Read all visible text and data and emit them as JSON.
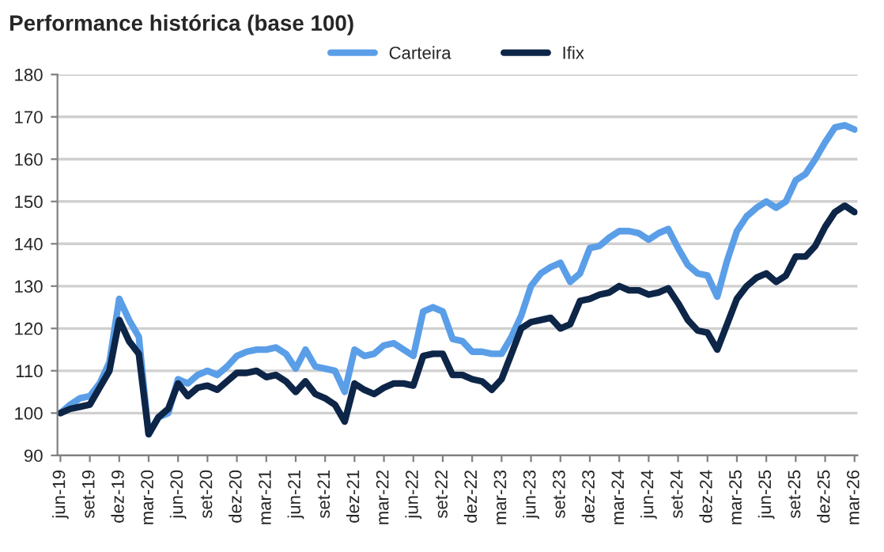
{
  "chart_data": {
    "type": "line",
    "title": "Performance histórica (base 100)",
    "categories": [
      "jun-19",
      null,
      null,
      "set-19",
      null,
      null,
      "dez-19",
      null,
      null,
      "mar-20",
      null,
      null,
      "jun-20",
      null,
      null,
      "set-20",
      null,
      null,
      "dez-20",
      null,
      null,
      "mar-21",
      null,
      null,
      "jun-21",
      null,
      null,
      "set-21",
      null,
      null,
      "dez-21",
      null,
      null,
      "mar-22",
      null,
      null,
      "jun-22",
      null,
      null,
      "set-22",
      null,
      null,
      "dez-22",
      null,
      null,
      "mar-23",
      null,
      null,
      "jun-23",
      null,
      null,
      "set-23",
      null,
      null,
      "dez-23",
      null,
      null,
      "mar-24",
      null,
      null,
      "jun-24",
      null,
      null,
      "set-24",
      null,
      null,
      "dez-24",
      null,
      null,
      "mar-25",
      null,
      null,
      "jun-25",
      null,
      null,
      "set-25",
      null,
      null,
      "dez-25",
      null,
      null,
      "mar-26"
    ],
    "series": [
      {
        "name": "Carteira",
        "color": "#5b9ee8",
        "values": [
          100,
          102,
          103.5,
          104,
          107,
          112,
          127,
          122,
          118,
          95,
          99,
          100,
          108,
          107,
          109,
          110,
          109,
          111,
          113.5,
          114.5,
          115,
          115,
          115.5,
          114,
          110.5,
          115,
          111,
          110.5,
          110,
          105,
          115,
          113.5,
          114,
          116,
          116.5,
          115,
          113.5,
          124,
          125,
          124,
          117.5,
          117,
          114.5,
          114.5,
          114,
          114,
          118,
          123,
          130,
          133,
          134.5,
          135.5,
          131,
          133,
          139,
          139.5,
          141.5,
          143,
          143,
          142.5,
          141,
          142.5,
          143.5,
          139,
          135,
          133,
          132.5,
          127.5,
          136,
          143,
          146.5,
          148.5,
          150,
          148.5,
          150,
          155,
          156.5,
          160,
          164,
          167.5,
          168,
          167
        ]
      },
      {
        "name": "Ifix",
        "color": "#0d2547",
        "values": [
          100,
          101,
          101.5,
          102,
          106,
          110,
          122,
          117,
          114,
          95,
          99,
          101,
          107,
          104,
          106,
          106.5,
          105.5,
          107.5,
          109.5,
          109.5,
          110,
          108.5,
          109,
          107.5,
          105,
          107.5,
          104.5,
          103.5,
          102,
          98,
          107,
          105.5,
          104.5,
          106,
          107,
          107,
          106.5,
          113.5,
          114,
          114,
          109,
          109,
          108,
          107.5,
          105.5,
          108,
          114,
          120,
          121.5,
          122,
          122.5,
          120,
          121,
          126.5,
          127,
          128,
          128.5,
          130,
          129,
          129,
          128,
          128.5,
          129.5,
          126,
          122,
          119.5,
          119,
          115,
          121,
          127,
          130,
          132,
          133,
          131,
          132.5,
          137,
          137,
          139.5,
          144,
          147.5,
          149,
          147.5
        ]
      }
    ],
    "ylim": [
      90,
      180
    ],
    "yticks": [
      90,
      100,
      110,
      120,
      130,
      140,
      150,
      160,
      170,
      180
    ],
    "grid": "y",
    "legend": "top"
  }
}
